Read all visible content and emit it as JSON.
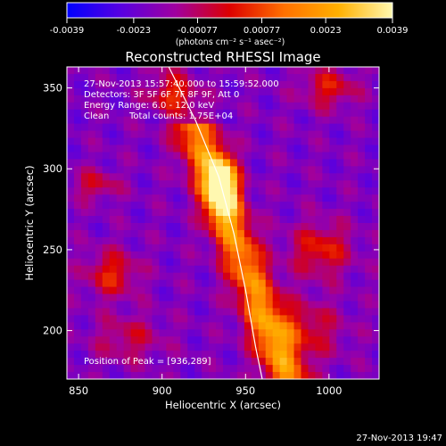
{
  "chart_data": {
    "type": "heatmap",
    "title": "Reconstructed RHESSI Image",
    "xlabel": "Heliocentric X (arcsec)",
    "ylabel": "Heliocentric Y (arcsec)",
    "xlim": [
      843,
      1030
    ],
    "ylim": [
      170,
      363
    ],
    "xticks": [
      850,
      900,
      950,
      1000
    ],
    "yticks": [
      200,
      250,
      300,
      350
    ],
    "colorbar": {
      "range": [
        -0.0039,
        0.0039
      ],
      "tick_labels": [
        "-0.0039",
        "-0.0023",
        "-0.00077",
        "0.00077",
        "0.0023",
        "0.0039"
      ],
      "colormap": [
        "#0000ff",
        "#5800e0",
        "#a000a0",
        "#dd0000",
        "#ff7000",
        "#ffb000",
        "#fff8b0"
      ]
    },
    "colorbar_unit": "(photons cm⁻² s⁻¹ asec⁻²)",
    "annotations": [
      "27-Nov-2013 15:57:40.000 to 15:59:52.000",
      "Detectors: 3F 5F 6F 7F 8F 9F, Att 0",
      "Energy Range: 6.0 - 12.0 keV",
      "Clean",
      "Total counts: 1.75E+04"
    ],
    "peak_label": "Position of Peak = [936,289]",
    "peak": {
      "x": 936,
      "y": 289
    },
    "limb_curve": [
      [
        904,
        363
      ],
      [
        920,
        330
      ],
      [
        934,
        295
      ],
      [
        943,
        260
      ],
      [
        950,
        225
      ],
      [
        956,
        190
      ],
      [
        960,
        170
      ]
    ],
    "timestamp": "27-Nov-2013 19:47"
  }
}
